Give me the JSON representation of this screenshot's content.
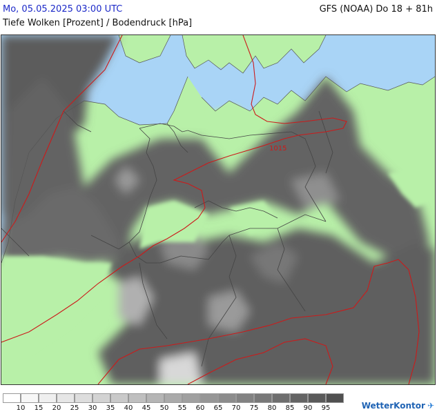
{
  "header": {
    "datetime": "Mo, 05.05.2025 03:00 UTC",
    "model_run": "GFS (NOAA) Do 18 + 81h",
    "subtitle": "Tiefe Wolken [Prozent] / Bodendruck [hPa]"
  },
  "map": {
    "isobar_labels": [
      "1015"
    ],
    "colors": {
      "land": "#b8f0a8",
      "water": "#a9d4f6",
      "isobar": "#cc1a1a",
      "border": "#444444"
    }
  },
  "legend": {
    "ticks": [
      "10",
      "15",
      "20",
      "25",
      "30",
      "35",
      "40",
      "45",
      "50",
      "55",
      "60",
      "65",
      "70",
      "75",
      "80",
      "85",
      "90",
      "95"
    ],
    "colors": [
      "#ffffff",
      "#f7f7f7",
      "#efefef",
      "#e6e6e6",
      "#dddddd",
      "#d3d3d3",
      "#c9c9c9",
      "#bfbfbf",
      "#b5b5b5",
      "#aaaaaa",
      "#a0a0a0",
      "#969696",
      "#8c8c8c",
      "#828282",
      "#787878",
      "#6e6e6e",
      "#646464",
      "#5a5a5a",
      "#505050"
    ]
  },
  "brand": {
    "name": "WetterKontor",
    "icon": "wetterkontor-logo-icon"
  }
}
